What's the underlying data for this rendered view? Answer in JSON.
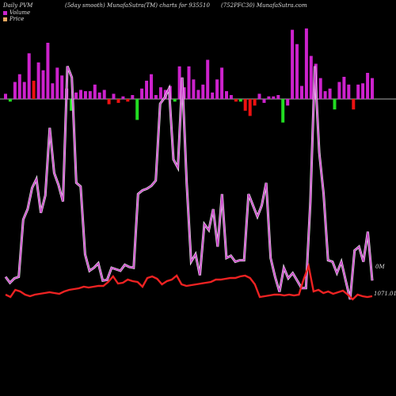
{
  "header": {
    "left": "Daily PVM",
    "middle": "(5day smooth) MunafaSutra(TM) charts for 935510",
    "right": "(752PFC30) MunafaSutra.com"
  },
  "legend": [
    {
      "label": "Volume",
      "color": "#cc22cc"
    },
    {
      "label": "Price",
      "color": "#f0a860"
    }
  ],
  "right_labels": {
    "volume": "0M",
    "price": "1071.01"
  },
  "colors": {
    "volume_up": "#cc22cc",
    "volume_down_red": "#ee1111",
    "volume_down_green": "#22dd22",
    "volume_line": "#cc44cc",
    "price_line": "#ee2222",
    "baseline": "#aaaaaa"
  },
  "chart_data": {
    "type": "bar+line",
    "volume_bars": {
      "values": [
        4,
        -2,
        13,
        19,
        13,
        35,
        14,
        28,
        22,
        43,
        12,
        24,
        18,
        8,
        -9,
        5,
        7,
        6,
        6,
        11,
        5,
        7,
        -4,
        4,
        -3,
        2,
        -2,
        3,
        -16,
        8,
        14,
        19,
        3,
        9,
        7,
        10,
        -2,
        25,
        9,
        25,
        15,
        7,
        11,
        30,
        5,
        15,
        24,
        6,
        3,
        -2,
        -2,
        -9,
        -13,
        -5,
        4,
        -3,
        2,
        2,
        3,
        -18,
        -5,
        53,
        42,
        10,
        54,
        33,
        27,
        16,
        6,
        8,
        -8,
        13,
        17,
        11,
        -8,
        11,
        12,
        20,
        16
      ],
      "colors": [
        "u",
        "g",
        "u",
        "u",
        "u",
        "u",
        "r",
        "u",
        "u",
        "u",
        "u",
        "u",
        "u",
        "u",
        "g",
        "u",
        "u",
        "u",
        "u",
        "u",
        "u",
        "u",
        "r",
        "u",
        "r",
        "u",
        "r",
        "u",
        "g",
        "u",
        "u",
        "u",
        "u",
        "u",
        "u",
        "u",
        "g",
        "u",
        "u",
        "u",
        "u",
        "u",
        "u",
        "u",
        "u",
        "u",
        "u",
        "u",
        "u",
        "r",
        "g",
        "r",
        "r",
        "r",
        "u",
        "u",
        "u",
        "u",
        "u",
        "g",
        "u",
        "u",
        "u",
        "u",
        "u",
        "u",
        "u",
        "u",
        "u",
        "u",
        "g",
        "u",
        "u",
        "u",
        "r",
        "u",
        "u",
        "u",
        "u"
      ]
    },
    "volume_line": [
      100,
      92,
      98,
      100,
      176,
      190,
      218,
      230,
      185,
      208,
      298,
      238,
      222,
      200,
      380,
      365,
      225,
      220,
      130,
      108,
      112,
      118,
      95,
      96,
      112,
      110,
      108,
      116,
      113,
      112,
      210,
      215,
      217,
      221,
      228,
      330,
      338,
      350,
      256,
      245,
      365,
      225,
      120,
      130,
      102,
      170,
      162,
      190,
      140,
      210,
      125,
      128,
      120,
      122,
      122,
      210,
      195,
      180,
      195,
      225,
      125,
      100,
      80,
      112,
      98,
      105,
      95,
      85,
      85,
      200,
      380,
      265,
      210,
      122,
      120,
      105,
      120,
      95,
      70,
      135,
      140,
      120,
      160,
      95
    ]
  }
}
